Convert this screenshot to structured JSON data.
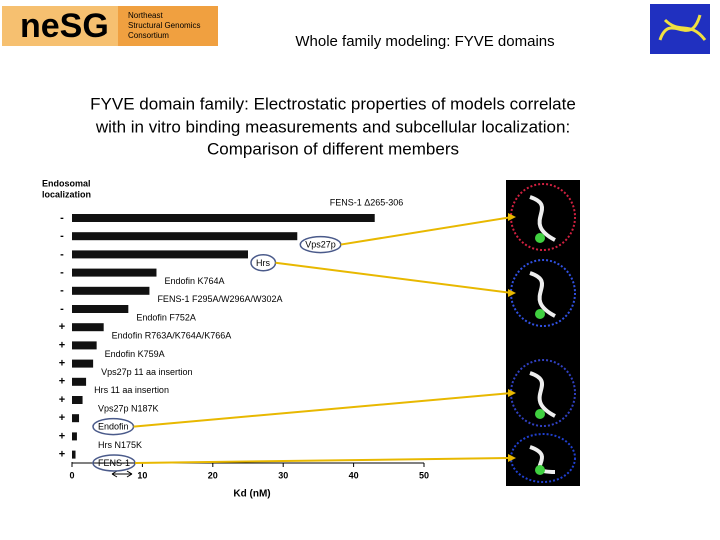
{
  "header": {
    "logo_text": "neSG",
    "logo_lines": [
      "Northeast",
      "Structural Genomics",
      "Consortium"
    ],
    "title": "Whole family modeling: FYVE domains"
  },
  "subtitle_lines": [
    "FYVE domain family: Electrostatic properties of models correlate",
    "with in vitro binding measurements and subcellular localization:",
    "Comparison of different members"
  ],
  "chart_data": {
    "type": "bar",
    "orientation": "horizontal",
    "ylabel": [
      "Endosomal",
      "localization"
    ],
    "xlabel": "Kd (nM)",
    "categories": [
      "FENS-1 Δ265-306",
      "Vps27p",
      "Hrs",
      "Endofin K764A",
      "FENS-1 F295A/W296A/W302A",
      "Endofin F752A",
      "Endofin R763A/K764A/K766A",
      "Endofin K759A",
      "Vps27p 11 aa insertion",
      "Hrs 11 aa insertion",
      "Vps27p N187K",
      "Endofin",
      "Hrs N175K",
      "FENS-1"
    ],
    "localization": [
      "-",
      "-",
      "-",
      "-",
      "-",
      "-",
      "+",
      "+",
      "+",
      "+",
      "+",
      "+",
      "+",
      "+"
    ],
    "values": [
      43,
      32,
      25,
      12,
      11,
      8,
      4.5,
      3.5,
      3,
      2,
      1.5,
      1,
      0.7,
      0.5
    ],
    "color": "#111111",
    "xlim": [
      0,
      50
    ],
    "xticks": [
      0,
      10,
      20,
      30,
      40,
      50
    ]
  }
}
